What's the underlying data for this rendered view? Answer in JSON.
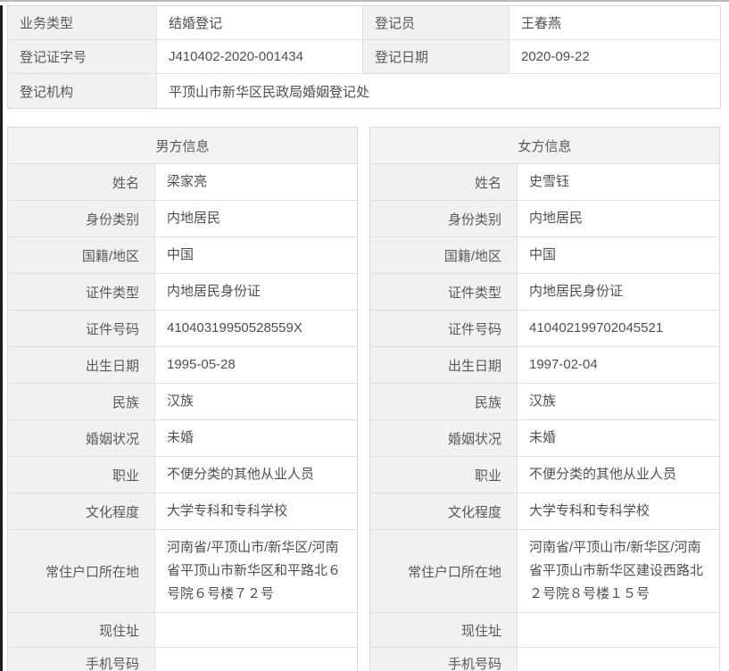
{
  "registration": {
    "business_type": {
      "label": "业务类型",
      "value": "结婚登记"
    },
    "registrar": {
      "label": "登记员",
      "value": "王春燕"
    },
    "certificate_no": {
      "label": "登记证字号",
      "value": "J410402-2020-001434"
    },
    "registration_date": {
      "label": "登记日期",
      "value": "2020-09-22"
    },
    "registration_office": {
      "label": "登记机构",
      "value": "平顶山市新华区民政局婚姻登记处"
    }
  },
  "male": {
    "header": "男方信息",
    "fields": [
      {
        "label": "姓名",
        "value": "梁家亮"
      },
      {
        "label": "身份类别",
        "value": "内地居民"
      },
      {
        "label": "国籍/地区",
        "value": "中国"
      },
      {
        "label": "证件类型",
        "value": "内地居民身份证"
      },
      {
        "label": "证件号码",
        "value": "41040319950528559X"
      },
      {
        "label": "出生日期",
        "value": "1995-05-28"
      },
      {
        "label": "民族",
        "value": "汉族"
      },
      {
        "label": "婚姻状况",
        "value": "未婚"
      },
      {
        "label": "职业",
        "value": "不便分类的其他从业人员"
      },
      {
        "label": "文化程度",
        "value": "大学专科和专科学校"
      },
      {
        "label": "常住户口所在地",
        "value": "河南省/平顶山市/新华区/河南省平顶山市新华区和平路北６号院６号楼７２号"
      },
      {
        "label": "现住址",
        "value": ""
      },
      {
        "label": "手机号码",
        "value": ""
      }
    ]
  },
  "female": {
    "header": "女方信息",
    "fields": [
      {
        "label": "姓名",
        "value": "史雪钰"
      },
      {
        "label": "身份类别",
        "value": "内地居民"
      },
      {
        "label": "国籍/地区",
        "value": "中国"
      },
      {
        "label": "证件类型",
        "value": "内地居民身份证"
      },
      {
        "label": "证件号码",
        "value": "410402199702045521"
      },
      {
        "label": "出生日期",
        "value": "1997-02-04"
      },
      {
        "label": "民族",
        "value": "汉族"
      },
      {
        "label": "婚姻状况",
        "value": "未婚"
      },
      {
        "label": "职业",
        "value": "不便分类的其他从业人员"
      },
      {
        "label": "文化程度",
        "value": "大学专科和专科学校"
      },
      {
        "label": "常住户口所在地",
        "value": "河南省/平顶山市/新华区/河南省平顶山市新华区建设西路北２号院８号楼１５号"
      },
      {
        "label": "现住址",
        "value": ""
      },
      {
        "label": "手机号码",
        "value": ""
      }
    ]
  },
  "colors": {
    "label_cell_bg": "#f1f1f1",
    "border": "#e0e0e0",
    "text": "#4f4f4f"
  }
}
